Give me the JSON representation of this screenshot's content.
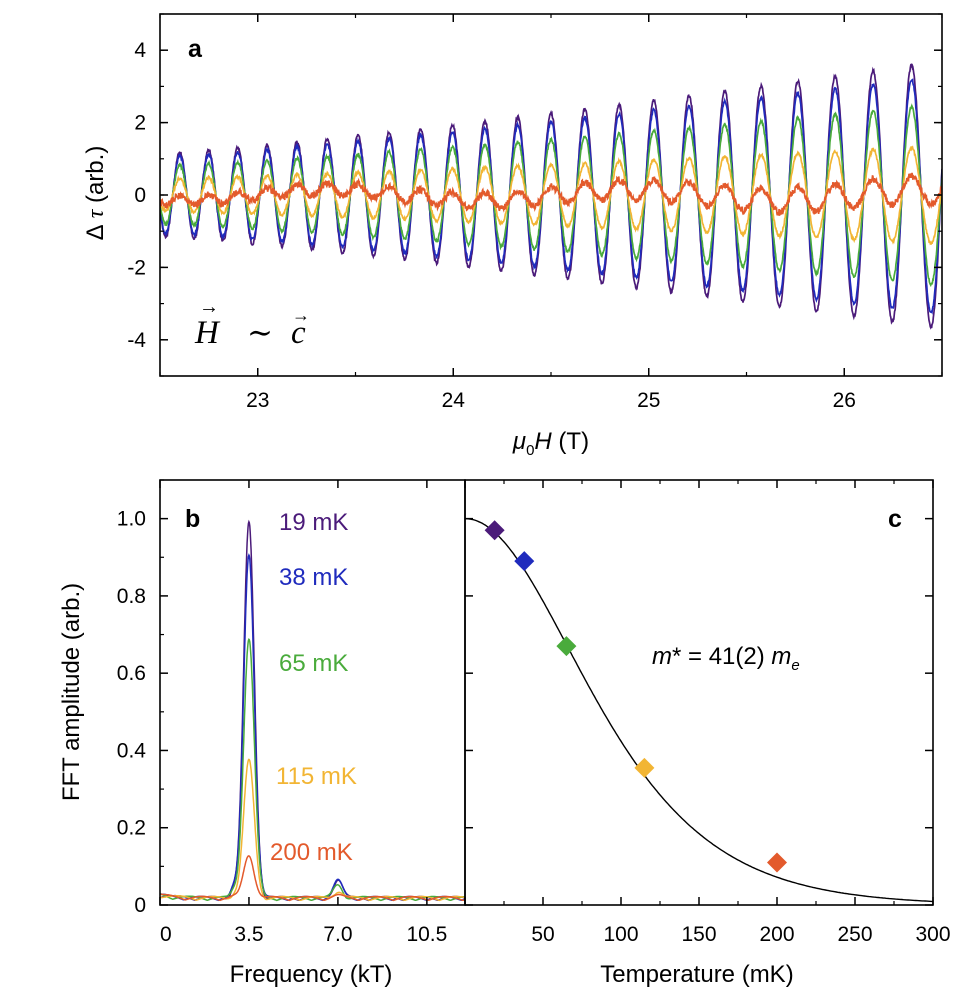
{
  "chart_data": [
    {
      "panel": "a",
      "type": "line",
      "panel_label": "a",
      "xlabel_sym": "μ",
      "xlabel_sub": "0",
      "xlabel_var": "H",
      "xlabel_unit": " (T)",
      "ylabel_sym": "Δ",
      "ylabel_var": "τ",
      "ylabel_unit": " (arb.)",
      "annotation_H": "H",
      "annotation_tilde": "∼",
      "annotation_c": "c",
      "annotation_arrow": "→",
      "xlim": [
        22.5,
        26.5
      ],
      "ylim": [
        -5,
        5
      ],
      "xticks": [
        "23",
        "24",
        "25",
        "26"
      ],
      "xtick_values": [
        23,
        24,
        25,
        26
      ],
      "yticks": [
        "-4",
        "-2",
        "0",
        "2",
        "4"
      ],
      "ytick_values": [
        -4,
        -2,
        0,
        2,
        4
      ],
      "frequency_T": 3500,
      "series": [
        {
          "color": "#4b1b7a",
          "amp_start": 1.15,
          "amp_end": 3.7
        },
        {
          "color": "#1f2bbd",
          "amp_start": 1.05,
          "amp_end": 3.3
        },
        {
          "color": "#4aab3c",
          "amp_start": 0.8,
          "amp_end": 2.5
        },
        {
          "color": "#f2b534",
          "amp_start": 0.45,
          "amp_end": 1.35
        },
        {
          "color": "#e35a2c",
          "amp_start": 0.12,
          "amp_end": 0.4
        }
      ]
    },
    {
      "panel": "b",
      "type": "line",
      "panel_label": "b",
      "xlabel": "Frequency (kT)",
      "ylabel": "FFT amplitude (arb.)",
      "xlim": [
        0,
        12
      ],
      "ylim": [
        0,
        1.1
      ],
      "xticks": [
        "0",
        "3.5",
        "7.0",
        "10.5"
      ],
      "xtick_values": [
        0,
        3.5,
        7.0,
        10.5
      ],
      "yticks": [
        "0",
        "0.2",
        "0.4",
        "0.6",
        "0.8",
        "1.0"
      ],
      "ytick_values": [
        0,
        0.2,
        0.4,
        0.6,
        0.8,
        1.0
      ],
      "peak_frequency": 3.5,
      "series": [
        {
          "name": "19 mK",
          "color": "#4b1b7a",
          "peak": 0.97
        },
        {
          "name": "38 mK",
          "color": "#1f2bbd",
          "peak": 0.89
        },
        {
          "name": "65 mK",
          "color": "#4aab3c",
          "peak": 0.67
        },
        {
          "name": "115 mK",
          "color": "#f2b534",
          "peak": 0.355
        },
        {
          "name": "200 mK",
          "color": "#e35a2c",
          "peak": 0.11
        }
      ]
    },
    {
      "panel": "c",
      "type": "scatter",
      "panel_label": "c",
      "xlabel": "Temperature (mK)",
      "xlim": [
        0,
        300
      ],
      "ylim": [
        0,
        1.1
      ],
      "xticks": [
        "0",
        "50",
        "100",
        "150",
        "200",
        "250",
        "300"
      ],
      "xtick_values": [
        0,
        50,
        100,
        150,
        200,
        250,
        300
      ],
      "ytick_values": [
        0,
        0.2,
        0.4,
        0.6,
        0.8,
        1.0
      ],
      "annotation_m": "m",
      "annotation_mid": "* = 41(2) ",
      "annotation_me": "m",
      "annotation_sub": "e",
      "effective_mass_me": 41,
      "points": [
        {
          "x": 19,
          "y": 0.97,
          "color": "#4b1b7a"
        },
        {
          "x": 38,
          "y": 0.89,
          "color": "#1f2bbd"
        },
        {
          "x": 65,
          "y": 0.67,
          "color": "#4aab3c"
        },
        {
          "x": 115,
          "y": 0.355,
          "color": "#f2b534"
        },
        {
          "x": 200,
          "y": 0.11,
          "color": "#e35a2c"
        }
      ]
    }
  ]
}
